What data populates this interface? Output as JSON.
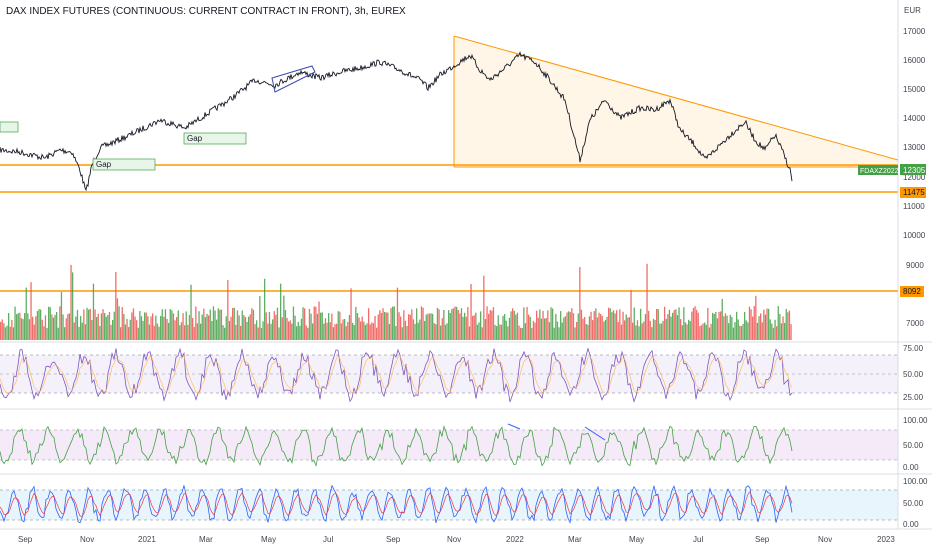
{
  "header": {
    "title": "DAX INDEX FUTURES (CONTINUOUS: CURRENT CONTRACT IN FRONT), 3h, EUREX"
  },
  "price_axis": {
    "currency": "EUR",
    "ticks": [
      "17000",
      "16000",
      "15000",
      "14000",
      "13000",
      "12000",
      "11000",
      "10000",
      "9000",
      "7000"
    ]
  },
  "time_axis": {
    "labels": [
      "Sep",
      "Nov",
      "2021",
      "Mar",
      "May",
      "Jul",
      "Sep",
      "Nov",
      "2022",
      "Mar",
      "May",
      "Jul",
      "Sep",
      "Nov",
      "2023"
    ]
  },
  "badges": {
    "symbol_label": "FDAXZ2022",
    "last_price": "12305",
    "support_level": "11475",
    "volume_level": "8092"
  },
  "annotations": {
    "gap1": "Gap",
    "gap2": "Gap"
  },
  "indicators": {
    "rsi_ticks": [
      "75.00",
      "50.00",
      "25.00"
    ],
    "osc2_ticks": [
      "100.00",
      "50.00",
      "0.00"
    ],
    "osc3_ticks": [
      "100.00",
      "50.00",
      "0.00"
    ]
  },
  "colors": {
    "up": "#26a69a",
    "down": "#ef5350",
    "accent_orange": "#ff9800",
    "rsi_line": "#7e57c2",
    "green_line": "#43a047",
    "blue_line": "#2962ff",
    "red_line": "#f23645"
  }
}
